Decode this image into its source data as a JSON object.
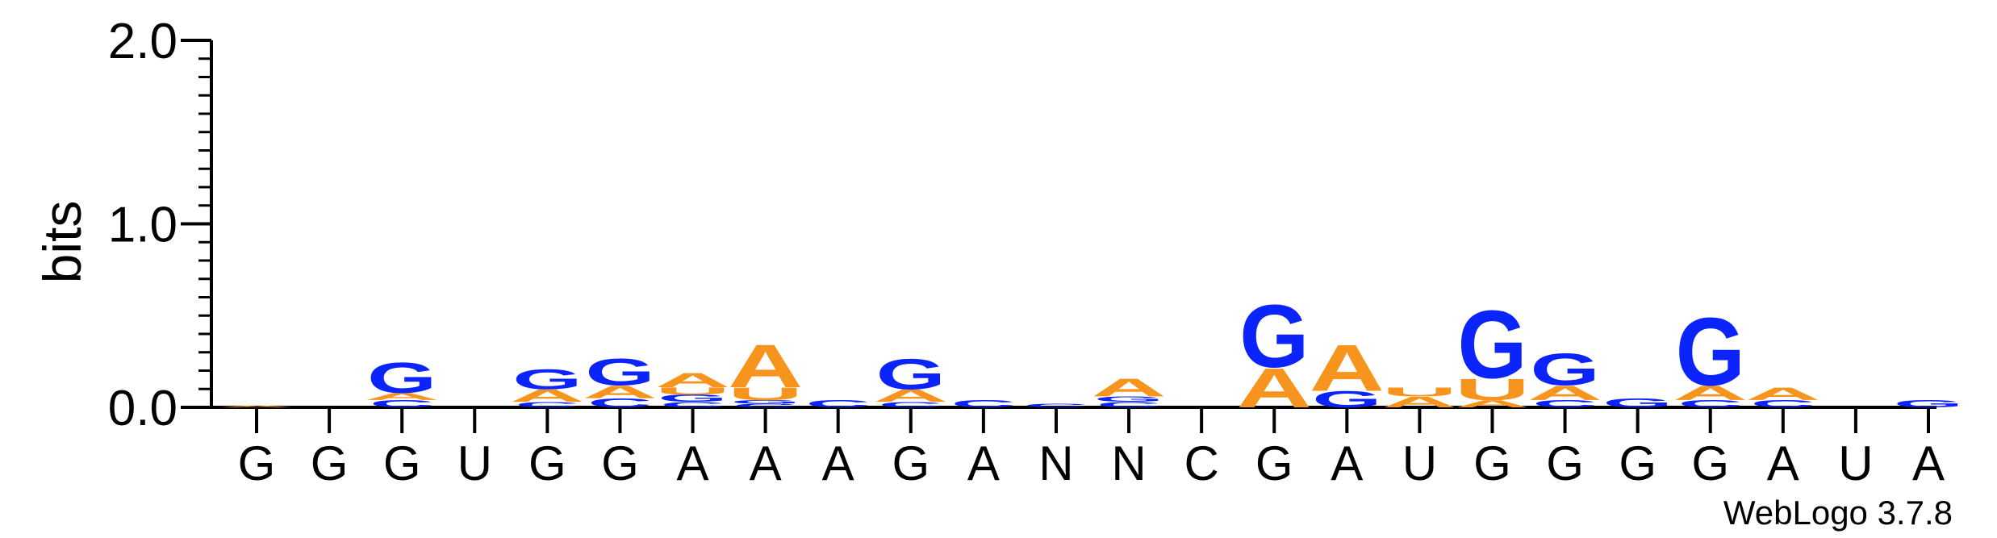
{
  "chart_data": {
    "type": "sequence-logo",
    "ylabel": "bits",
    "ylim": [
      0,
      2.0
    ],
    "yticks": [
      "0.0",
      "1.0",
      "2.0"
    ],
    "x_labels": [
      "G",
      "G",
      "G",
      "U",
      "G",
      "G",
      "A",
      "A",
      "A",
      "G",
      "A",
      "N",
      "N",
      "C",
      "G",
      "A",
      "U",
      "G",
      "G",
      "G",
      "G",
      "A",
      "U",
      "A"
    ],
    "footer": "WebLogo 3.7.8",
    "colors": {
      "A": "#f7941d",
      "U": "#f7941d",
      "G": "#0b24fb",
      "C": "#0b24fb"
    },
    "stacks": [
      [
        [
          "A",
          0.01
        ]
      ],
      [],
      [
        [
          "C",
          0.04
        ],
        [
          "A",
          0.04
        ],
        [
          "G",
          0.17
        ]
      ],
      [],
      [
        [
          "C",
          0.03
        ],
        [
          "A",
          0.07
        ],
        [
          "G",
          0.11
        ]
      ],
      [
        [
          "C",
          0.05
        ],
        [
          "A",
          0.07
        ],
        [
          "G",
          0.15
        ]
      ],
      [
        [
          "C",
          0.03
        ],
        [
          "G",
          0.04
        ],
        [
          "U",
          0.04
        ],
        [
          "A",
          0.08
        ]
      ],
      [
        [
          "C",
          0.02
        ],
        [
          "G",
          0.02
        ],
        [
          "U",
          0.07
        ],
        [
          "A",
          0.24
        ]
      ],
      [
        [
          "C",
          0.04
        ]
      ],
      [
        [
          "C",
          0.03
        ],
        [
          "A",
          0.07
        ],
        [
          "G",
          0.17
        ]
      ],
      [
        [
          "C",
          0.04
        ]
      ],
      [
        [
          "C",
          0.02
        ]
      ],
      [
        [
          "C",
          0.03
        ],
        [
          "G",
          0.03
        ],
        [
          "A",
          0.1
        ]
      ],
      [],
      [
        [
          "A",
          0.22
        ],
        [
          "G",
          0.35
        ]
      ],
      [
        [
          "G",
          0.09
        ],
        [
          "A",
          0.26
        ]
      ],
      [
        [
          "A",
          0.06
        ],
        [
          "U",
          0.05
        ]
      ],
      [
        [
          "A",
          0.04
        ],
        [
          "U",
          0.12
        ],
        [
          "G",
          0.38
        ]
      ],
      [
        [
          "C",
          0.04
        ],
        [
          "A",
          0.08
        ],
        [
          "G",
          0.18
        ]
      ],
      [
        [
          "G",
          0.05
        ]
      ],
      [
        [
          "C",
          0.04
        ],
        [
          "A",
          0.08
        ],
        [
          "G",
          0.38
        ]
      ],
      [
        [
          "C",
          0.04
        ],
        [
          "A",
          0.07
        ]
      ],
      [],
      [
        [
          "G",
          0.04
        ]
      ]
    ]
  }
}
